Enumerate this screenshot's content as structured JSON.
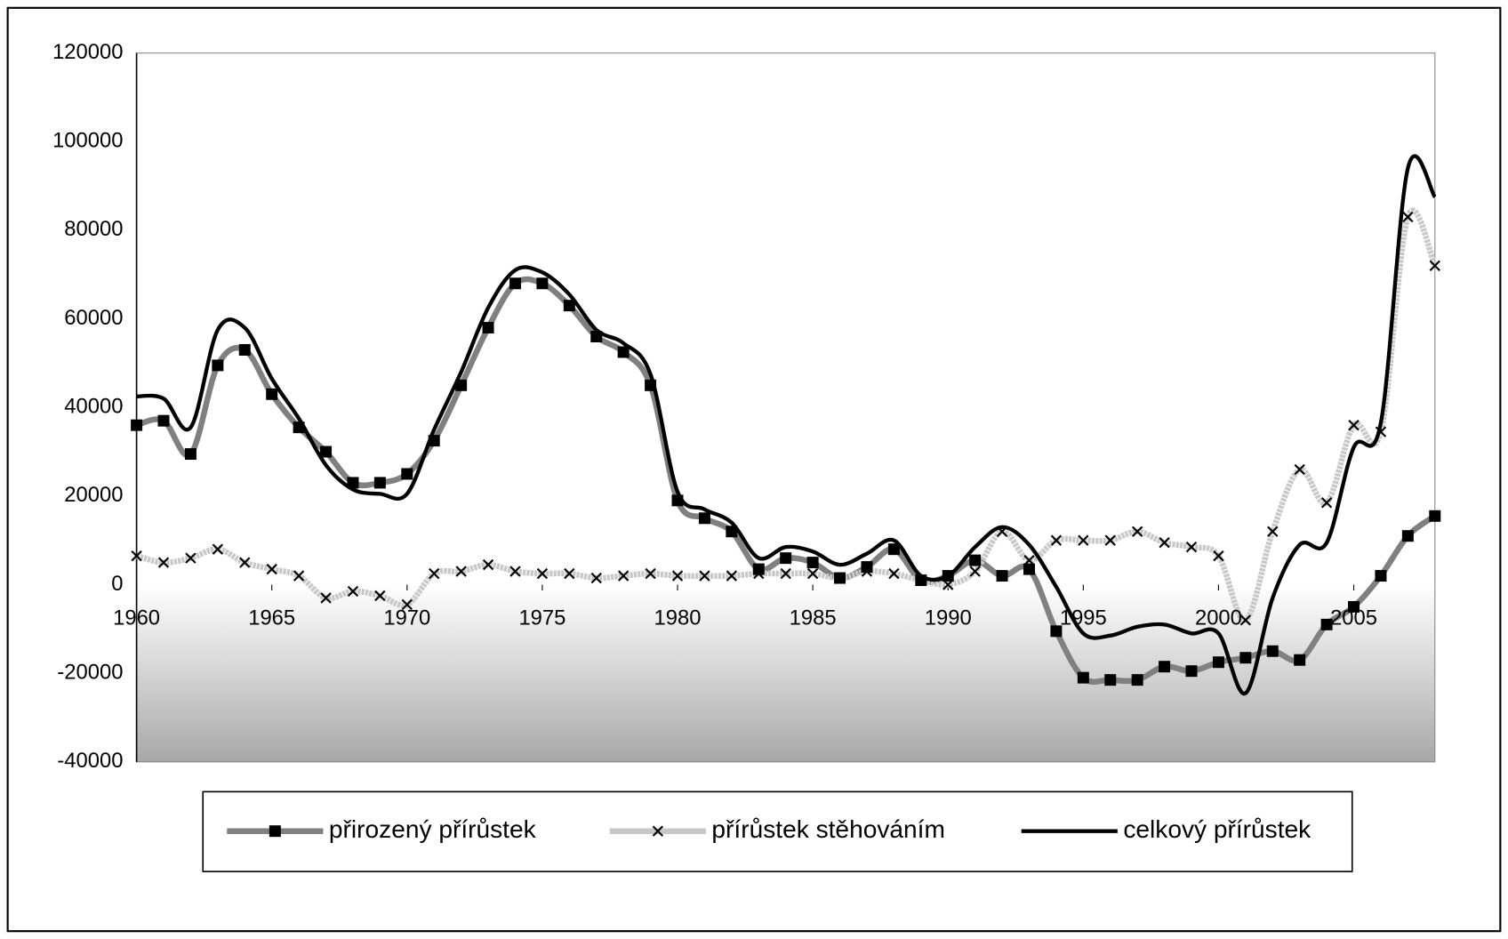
{
  "chart_data": {
    "type": "line",
    "x": [
      1960,
      1961,
      1962,
      1963,
      1964,
      1965,
      1966,
      1967,
      1968,
      1969,
      1970,
      1971,
      1972,
      1973,
      1974,
      1975,
      1976,
      1977,
      1978,
      1979,
      1980,
      1981,
      1982,
      1983,
      1984,
      1985,
      1986,
      1987,
      1988,
      1989,
      1990,
      1991,
      1992,
      1993,
      1994,
      1995,
      1996,
      1997,
      1998,
      1999,
      2000,
      2001,
      2002,
      2003,
      2004,
      2005,
      2006,
      2007,
      2008
    ],
    "xlim": [
      1960,
      2008
    ],
    "xticks": [
      1960,
      1965,
      1970,
      1975,
      1980,
      1985,
      1990,
      1995,
      2000,
      2005
    ],
    "ylim": [
      -40000,
      120000
    ],
    "yticks": [
      -40000,
      -20000,
      0,
      20000,
      40000,
      60000,
      80000,
      100000,
      120000
    ],
    "grid": true,
    "series": [
      {
        "name": "přirozený přírůstek",
        "color": "#808080",
        "marker": "square",
        "values": [
          36000,
          37000,
          29500,
          49500,
          53000,
          43000,
          35500,
          30000,
          23000,
          23000,
          25000,
          32500,
          45000,
          58000,
          68000,
          68000,
          63000,
          56000,
          52500,
          45000,
          19000,
          15000,
          12000,
          3500,
          6000,
          5000,
          1500,
          4000,
          8000,
          1000,
          2000,
          5500,
          2000,
          3500,
          -10500,
          -21000,
          -21500,
          -21500,
          -18500,
          -19500,
          -17500,
          -16500,
          -15000,
          -17000,
          -9000,
          -5000,
          2000,
          11000,
          15500
        ]
      },
      {
        "name": "přírůstek stěhováním",
        "color": "#c8c8c8",
        "marker": "x",
        "values": [
          6500,
          5000,
          6000,
          8000,
          5000,
          3500,
          2000,
          -3000,
          -1500,
          -2500,
          -4500,
          2500,
          3000,
          4500,
          3000,
          2500,
          2500,
          1500,
          2000,
          2500,
          2000,
          2000,
          2000,
          2500,
          2500,
          2500,
          1500,
          3000,
          2500,
          1000,
          0,
          3000,
          12000,
          5500,
          10000,
          10000,
          10000,
          12000,
          9500,
          8500,
          6500,
          -8000,
          12000,
          26000,
          18500,
          36000,
          34500,
          83000,
          72000
        ]
      },
      {
        "name": "celkový přírůstek",
        "color": "#000000",
        "marker": "none",
        "values": [
          42500,
          42000,
          35500,
          57500,
          58000,
          46500,
          37500,
          27000,
          21500,
          20500,
          20500,
          35000,
          48000,
          62500,
          71000,
          70500,
          65500,
          57500,
          54500,
          47500,
          21000,
          17000,
          14000,
          6000,
          8500,
          7500,
          4500,
          7000,
          10000,
          2000,
          2000,
          8500,
          13000,
          9000,
          -500,
          -11000,
          -11500,
          -9500,
          -9000,
          -11000,
          -11000,
          -24500,
          -3000,
          9000,
          9500,
          31000,
          36500,
          94000,
          87500
        ]
      }
    ]
  }
}
